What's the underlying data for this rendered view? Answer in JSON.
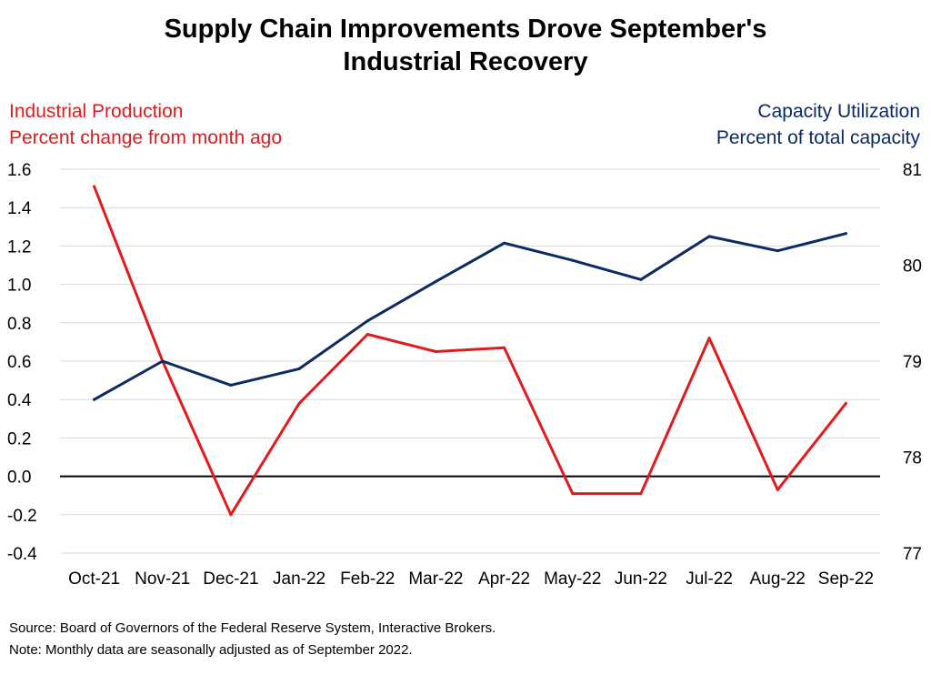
{
  "title": [
    "Supply Chain Improvements Drove September's",
    "Industrial Recovery"
  ],
  "left_axis_label": [
    "Industrial Production",
    "Percent change from month ago"
  ],
  "right_axis_label": [
    "Capacity Utilization",
    "Percent of total capacity"
  ],
  "source": "Source: Board of Governors of the Federal Reserve System, Interactive Brokers.",
  "note": "Note: Monthly data are seasonally adjusted as of September 2022.",
  "colors": {
    "industrial_production": "#e31a1c",
    "capacity_utilization": "#0c2a63",
    "zero_line": "#000000",
    "grid": "#d9d9d9"
  },
  "chart_data": {
    "type": "line",
    "categories": [
      "Oct-21",
      "Nov-21",
      "Dec-21",
      "Jan-22",
      "Feb-22",
      "Mar-22",
      "Apr-22",
      "May-22",
      "Jun-22",
      "Jul-22",
      "Aug-22",
      "Sep-22"
    ],
    "series": [
      {
        "name": "Industrial Production",
        "axis": "left",
        "values": [
          1.51,
          0.6,
          -0.2,
          0.38,
          0.74,
          0.65,
          0.67,
          -0.09,
          -0.09,
          0.72,
          -0.07,
          0.38
        ]
      },
      {
        "name": "Capacity Utilization",
        "axis": "right",
        "values": [
          78.6,
          79.0,
          78.75,
          78.92,
          79.42,
          79.83,
          80.23,
          80.05,
          79.85,
          80.3,
          80.15,
          80.33
        ]
      }
    ],
    "left_axis": {
      "min": -0.4,
      "max": 1.6,
      "ticks": [
        "1.6",
        "1.4",
        "1.2",
        "1.0",
        "0.8",
        "0.6",
        "0.4",
        "0.2",
        "0.0",
        "-0.2",
        "-0.4"
      ]
    },
    "right_axis": {
      "min": 77,
      "max": 81,
      "ticks": [
        "81",
        "80",
        "79",
        "78",
        "77"
      ]
    },
    "grid": true,
    "legend": "none"
  }
}
